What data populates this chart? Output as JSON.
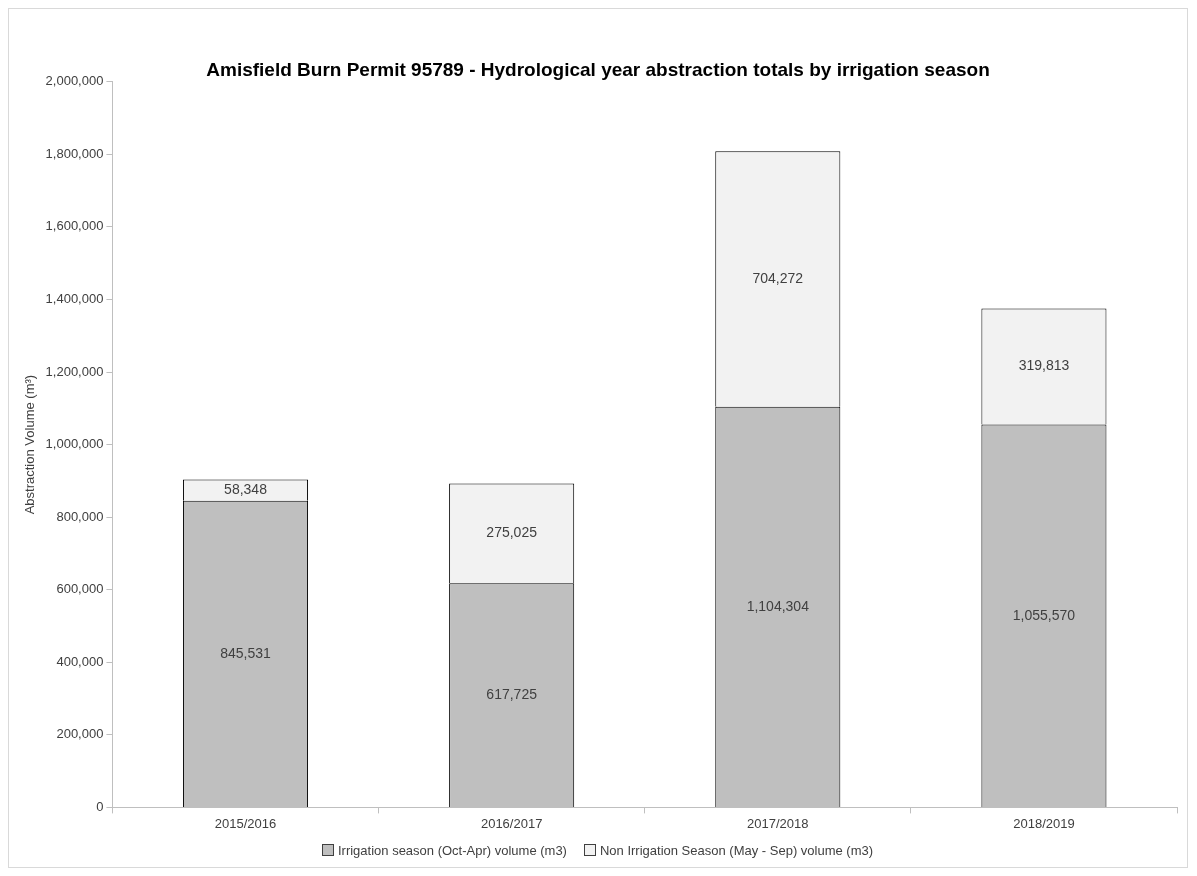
{
  "chart_data": {
    "type": "bar",
    "title": "Amisfield Burn Permit 95789 - Hydrological year abstraction totals by irrigation season",
    "ylabel": "Abstraction Volume (m³)",
    "categories": [
      "2015/2016",
      "2016/2017",
      "2017/2018",
      "2018/2019"
    ],
    "series": [
      {
        "name": "Irrigation season (Oct-Apr) volume (m3)",
        "color": "#bfbfbf",
        "values": [
          845531,
          617725,
          1104304,
          1055570
        ],
        "value_labels": [
          "845,531",
          "617,725",
          "1,104,304",
          "1,055,570"
        ]
      },
      {
        "name": "Non Irrigation Season (May - Sep) volume (m3)",
        "color": "#f2f2f2",
        "values": [
          58348,
          275025,
          704272,
          319813
        ],
        "value_labels": [
          "58,348",
          "275,025",
          "704,272",
          "319,813"
        ]
      }
    ],
    "stacked": true,
    "ylim": [
      0,
      2000000
    ],
    "yticks": [
      {
        "value": 0,
        "label": "0"
      },
      {
        "value": 200000,
        "label": "200,000"
      },
      {
        "value": 400000,
        "label": "400,000"
      },
      {
        "value": 600000,
        "label": "600,000"
      },
      {
        "value": 800000,
        "label": "800,000"
      },
      {
        "value": 1000000,
        "label": "1,000,000"
      },
      {
        "value": 1200000,
        "label": "1,200,000"
      },
      {
        "value": 1400000,
        "label": "1,400,000"
      },
      {
        "value": 1600000,
        "label": "1,600,000"
      },
      {
        "value": 1800000,
        "label": "1,800,000"
      },
      {
        "value": 2000000,
        "label": "2,000,000"
      }
    ],
    "grid": false,
    "legend": "bottom"
  }
}
